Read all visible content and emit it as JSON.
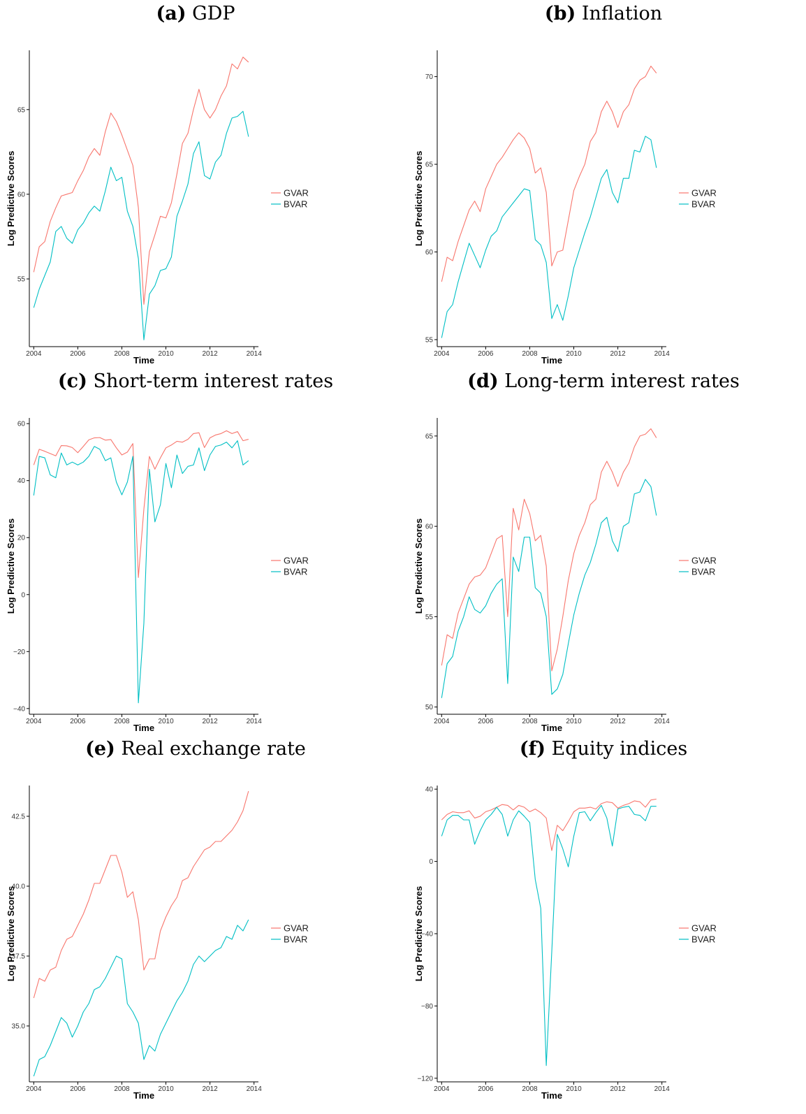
{
  "colors": {
    "gvar": "#F8766D",
    "bvar": "#00BFC4",
    "axis": "#000000"
  },
  "legend": [
    "GVAR",
    "BVAR"
  ],
  "chart_data": [
    {
      "type": "line",
      "label_letter": "(a)",
      "title": "GDP",
      "xlabel": "Time",
      "ylabel": "Log Predictive Scores",
      "xlim": [
        2003.8,
        2014.2
      ],
      "ylim": [
        51,
        68.5
      ],
      "xticks": [
        2004,
        2006,
        2008,
        2010,
        2012,
        2014
      ],
      "yticks": [
        55,
        60,
        65
      ],
      "ytick_labels": [
        "55",
        "60",
        "65"
      ],
      "legend": "right",
      "x": [
        2004.0,
        2004.25,
        2004.5,
        2004.75,
        2005.0,
        2005.25,
        2005.5,
        2005.75,
        2006.0,
        2006.25,
        2006.5,
        2006.75,
        2007.0,
        2007.25,
        2007.5,
        2007.75,
        2008.0,
        2008.25,
        2008.5,
        2008.75,
        2009.0,
        2009.25,
        2009.5,
        2009.75,
        2010.0,
        2010.25,
        2010.5,
        2010.75,
        2011.0,
        2011.25,
        2011.5,
        2011.75,
        2012.0,
        2012.25,
        2012.5,
        2012.75,
        2013.0,
        2013.25,
        2013.5,
        2013.75
      ],
      "series": [
        {
          "name": "GVAR",
          "values": [
            55.4,
            56.9,
            57.2,
            58.4,
            59.2,
            59.9,
            60.0,
            60.1,
            60.8,
            61.4,
            62.2,
            62.7,
            62.3,
            63.7,
            64.8,
            64.3,
            63.5,
            62.6,
            61.7,
            59.2,
            53.5,
            56.6,
            57.6,
            58.7,
            58.6,
            59.5,
            61.2,
            63.0,
            63.6,
            65.0,
            66.2,
            65.0,
            64.5,
            65.0,
            65.8,
            66.4,
            67.7,
            67.4,
            68.1,
            67.8
          ]
        },
        {
          "name": "BVAR",
          "values": [
            53.3,
            54.4,
            55.2,
            56.0,
            57.8,
            58.1,
            57.4,
            57.1,
            57.9,
            58.3,
            58.9,
            59.3,
            59.0,
            60.2,
            61.6,
            60.8,
            61.0,
            59.0,
            58.1,
            56.2,
            51.4,
            54.1,
            54.6,
            55.5,
            55.6,
            56.3,
            58.7,
            59.6,
            60.6,
            62.4,
            63.1,
            61.1,
            60.9,
            61.9,
            62.3,
            63.6,
            64.5,
            64.6,
            64.9,
            63.4
          ]
        }
      ]
    },
    {
      "type": "line",
      "label_letter": "(b)",
      "title": "Inflation",
      "xlabel": "Time",
      "ylabel": "Log Predictive Scores",
      "xlim": [
        2003.8,
        2014.2
      ],
      "ylim": [
        54.6,
        71.5
      ],
      "xticks": [
        2004,
        2006,
        2008,
        2010,
        2012,
        2014
      ],
      "yticks": [
        55,
        60,
        65,
        70
      ],
      "ytick_labels": [
        "55",
        "60",
        "65",
        "70"
      ],
      "legend": "right",
      "x": [
        2004.0,
        2004.25,
        2004.5,
        2004.75,
        2005.0,
        2005.25,
        2005.5,
        2005.75,
        2006.0,
        2006.25,
        2006.5,
        2006.75,
        2007.0,
        2007.25,
        2007.5,
        2007.75,
        2008.0,
        2008.25,
        2008.5,
        2008.75,
        2009.0,
        2009.25,
        2009.5,
        2009.75,
        2010.0,
        2010.25,
        2010.5,
        2010.75,
        2011.0,
        2011.25,
        2011.5,
        2011.75,
        2012.0,
        2012.25,
        2012.5,
        2012.75,
        2013.0,
        2013.25,
        2013.5,
        2013.75
      ],
      "series": [
        {
          "name": "GVAR",
          "values": [
            58.3,
            59.7,
            59.5,
            60.6,
            61.5,
            62.4,
            62.9,
            62.3,
            63.6,
            64.3,
            65.0,
            65.4,
            65.9,
            66.4,
            66.8,
            66.5,
            65.9,
            64.5,
            64.8,
            63.4,
            59.2,
            60.0,
            60.1,
            61.8,
            63.5,
            64.3,
            65.0,
            66.3,
            66.8,
            68.0,
            68.6,
            68.0,
            67.1,
            68.0,
            68.4,
            69.3,
            69.8,
            70.0,
            70.6,
            70.2
          ]
        },
        {
          "name": "BVAR",
          "values": [
            55.1,
            56.6,
            57.0,
            58.3,
            59.4,
            60.5,
            59.8,
            59.1,
            60.1,
            60.9,
            61.2,
            62.0,
            62.4,
            62.8,
            63.2,
            63.6,
            63.5,
            60.7,
            60.4,
            59.4,
            56.2,
            57.0,
            56.1,
            57.5,
            59.1,
            60.1,
            61.1,
            62.0,
            63.1,
            64.2,
            64.7,
            63.4,
            62.8,
            64.2,
            64.2,
            65.8,
            65.7,
            66.6,
            66.4,
            64.8
          ]
        }
      ]
    },
    {
      "type": "line",
      "label_letter": "(c)",
      "title": "Short-term interest rates",
      "xlabel": "Time",
      "ylabel": "Log Predictive Scores",
      "xlim": [
        2003.8,
        2014.2
      ],
      "ylim": [
        -42,
        62
      ],
      "xticks": [
        2004,
        2006,
        2008,
        2010,
        2012,
        2014
      ],
      "yticks": [
        -40,
        -20,
        0,
        20,
        40,
        60
      ],
      "ytick_labels": [
        "−40",
        "−20",
        "0",
        "20",
        "40",
        "60"
      ],
      "legend": "right",
      "x": [
        2004.0,
        2004.25,
        2004.5,
        2004.75,
        2005.0,
        2005.25,
        2005.5,
        2005.75,
        2006.0,
        2006.25,
        2006.5,
        2006.75,
        2007.0,
        2007.25,
        2007.5,
        2007.75,
        2008.0,
        2008.25,
        2008.5,
        2008.75,
        2009.0,
        2009.25,
        2009.5,
        2009.75,
        2010.0,
        2010.25,
        2010.5,
        2010.75,
        2011.0,
        2011.25,
        2011.5,
        2011.75,
        2012.0,
        2012.25,
        2012.5,
        2012.75,
        2013.0,
        2013.25,
        2013.5,
        2013.75
      ],
      "series": [
        {
          "name": "GVAR",
          "values": [
            45.5,
            51.0,
            50.3,
            49.5,
            48.7,
            52.3,
            52.2,
            51.6,
            49.8,
            52.0,
            54.3,
            55.0,
            55.1,
            54.2,
            54.4,
            51.5,
            49.0,
            50.0,
            53.0,
            6.0,
            30.0,
            48.5,
            44.0,
            48.0,
            51.5,
            52.5,
            53.8,
            53.5,
            54.5,
            56.5,
            56.8,
            51.6,
            55.0,
            56.0,
            56.5,
            57.5,
            56.5,
            57.2,
            54.0,
            54.5
          ]
        },
        {
          "name": "BVAR",
          "values": [
            34.8,
            48.5,
            48.0,
            42.0,
            41.0,
            49.7,
            45.5,
            46.5,
            45.5,
            46.5,
            48.5,
            52.0,
            51.0,
            47.0,
            48.0,
            39.5,
            35.0,
            39.5,
            48.5,
            -38.0,
            -10.0,
            44.0,
            25.5,
            31.5,
            46.0,
            37.5,
            49.0,
            42.5,
            45.0,
            45.5,
            51.5,
            43.5,
            49.0,
            52.0,
            52.5,
            53.5,
            51.5,
            54.0,
            45.5,
            47.0
          ]
        }
      ]
    },
    {
      "type": "line",
      "label_letter": "(d)",
      "title": "Long-term interest rates",
      "xlabel": "Time",
      "ylabel": "Log Predictive Scores",
      "xlim": [
        2003.8,
        2014.2
      ],
      "ylim": [
        49.6,
        66.0
      ],
      "xticks": [
        2004,
        2006,
        2008,
        2010,
        2012,
        2014
      ],
      "yticks": [
        50,
        55,
        60,
        65
      ],
      "ytick_labels": [
        "50",
        "55",
        "60",
        "65"
      ],
      "legend": "right",
      "x": [
        2004.0,
        2004.25,
        2004.5,
        2004.75,
        2005.0,
        2005.25,
        2005.5,
        2005.75,
        2006.0,
        2006.25,
        2006.5,
        2006.75,
        2007.0,
        2007.25,
        2007.5,
        2007.75,
        2008.0,
        2008.25,
        2008.5,
        2008.75,
        2009.0,
        2009.25,
        2009.5,
        2009.75,
        2010.0,
        2010.25,
        2010.5,
        2010.75,
        2011.0,
        2011.25,
        2011.5,
        2011.75,
        2012.0,
        2012.25,
        2012.5,
        2012.75,
        2013.0,
        2013.25,
        2013.5,
        2013.75
      ],
      "series": [
        {
          "name": "GVAR",
          "values": [
            52.3,
            54.0,
            53.8,
            55.2,
            56.0,
            56.8,
            57.2,
            57.3,
            57.7,
            58.5,
            59.3,
            59.5,
            55.0,
            61.0,
            59.8,
            61.5,
            60.7,
            59.2,
            59.5,
            57.8,
            52.0,
            53.2,
            55.0,
            57.0,
            58.5,
            59.5,
            60.2,
            61.2,
            61.5,
            63.0,
            63.6,
            63.0,
            62.2,
            63.0,
            63.5,
            64.4,
            65.0,
            65.1,
            65.4,
            64.9
          ]
        },
        {
          "name": "BVAR",
          "values": [
            50.5,
            52.4,
            52.8,
            54.2,
            55.0,
            56.1,
            55.4,
            55.2,
            55.6,
            56.3,
            56.8,
            57.1,
            51.3,
            58.3,
            57.5,
            59.4,
            59.4,
            56.6,
            56.3,
            55.0,
            50.7,
            51.0,
            51.8,
            53.5,
            55.1,
            56.3,
            57.3,
            58.0,
            59.0,
            60.2,
            60.5,
            59.2,
            58.6,
            60.0,
            60.2,
            61.8,
            61.9,
            62.6,
            62.2,
            60.6
          ]
        }
      ]
    },
    {
      "type": "line",
      "label_letter": "(e)",
      "title": "Real exchange rate",
      "xlabel": "Time",
      "ylabel": "Log Predictive Scores",
      "xlim": [
        2003.8,
        2014.2
      ],
      "ylim": [
        33.0,
        43.6
      ],
      "xticks": [
        2004,
        2006,
        2008,
        2010,
        2012,
        2014
      ],
      "yticks": [
        35.0,
        37.5,
        40.0,
        42.5
      ],
      "ytick_labels": [
        "35.0",
        "37.5",
        "40.0",
        "42.5"
      ],
      "legend": "right",
      "x": [
        2004.0,
        2004.25,
        2004.5,
        2004.75,
        2005.0,
        2005.25,
        2005.5,
        2005.75,
        2006.0,
        2006.25,
        2006.5,
        2006.75,
        2007.0,
        2007.25,
        2007.5,
        2007.75,
        2008.0,
        2008.25,
        2008.5,
        2008.75,
        2009.0,
        2009.25,
        2009.5,
        2009.75,
        2010.0,
        2010.25,
        2010.5,
        2010.75,
        2011.0,
        2011.25,
        2011.5,
        2011.75,
        2012.0,
        2012.25,
        2012.5,
        2012.75,
        2013.0,
        2013.25,
        2013.5,
        2013.75
      ],
      "series": [
        {
          "name": "GVAR",
          "values": [
            36.0,
            36.7,
            36.6,
            37.0,
            37.1,
            37.7,
            38.1,
            38.2,
            38.6,
            39.0,
            39.5,
            40.1,
            40.1,
            40.6,
            41.1,
            41.1,
            40.5,
            39.6,
            39.8,
            38.8,
            37.0,
            37.4,
            37.4,
            38.4,
            38.9,
            39.3,
            39.6,
            40.2,
            40.3,
            40.7,
            41.0,
            41.3,
            41.4,
            41.6,
            41.6,
            41.8,
            42.0,
            42.3,
            42.7,
            43.4
          ]
        },
        {
          "name": "BVAR",
          "values": [
            33.2,
            33.8,
            33.9,
            34.3,
            34.8,
            35.3,
            35.1,
            34.6,
            35.0,
            35.5,
            35.8,
            36.3,
            36.4,
            36.7,
            37.1,
            37.5,
            37.4,
            35.8,
            35.5,
            35.1,
            33.8,
            34.3,
            34.1,
            34.7,
            35.1,
            35.5,
            35.9,
            36.2,
            36.6,
            37.2,
            37.5,
            37.3,
            37.5,
            37.7,
            37.8,
            38.2,
            38.1,
            38.6,
            38.4,
            38.8
          ]
        }
      ]
    },
    {
      "type": "line",
      "label_letter": "(f)",
      "title": "Equity indices",
      "xlabel": "Time",
      "ylabel": "Log Predictive Scores",
      "xlim": [
        2003.8,
        2014.2
      ],
      "ylim": [
        -122,
        42
      ],
      "xticks": [
        2004,
        2006,
        2008,
        2010,
        2012,
        2014
      ],
      "yticks": [
        -120,
        -80,
        -40,
        0,
        40
      ],
      "ytick_labels": [
        "−120",
        "−80",
        "−40",
        "0",
        "40"
      ],
      "legend": "right",
      "x": [
        2004.0,
        2004.25,
        2004.5,
        2004.75,
        2005.0,
        2005.25,
        2005.5,
        2005.75,
        2006.0,
        2006.25,
        2006.5,
        2006.75,
        2007.0,
        2007.25,
        2007.5,
        2007.75,
        2008.0,
        2008.25,
        2008.5,
        2008.75,
        2009.0,
        2009.25,
        2009.5,
        2009.75,
        2010.0,
        2010.25,
        2010.5,
        2010.75,
        2011.0,
        2011.25,
        2011.5,
        2011.75,
        2012.0,
        2012.25,
        2012.5,
        2012.75,
        2013.0,
        2013.25,
        2013.5,
        2013.75
      ],
      "series": [
        {
          "name": "GVAR",
          "values": [
            23.0,
            26.0,
            27.5,
            27.0,
            27.0,
            28.0,
            24.0,
            25.0,
            27.5,
            28.5,
            30.0,
            31.5,
            31.0,
            28.5,
            31.0,
            30.0,
            27.5,
            29.0,
            27.0,
            24.0,
            6.0,
            20.0,
            17.0,
            22.0,
            27.5,
            29.5,
            29.5,
            30.0,
            29.0,
            32.0,
            33.0,
            32.5,
            29.5,
            31.0,
            32.0,
            33.5,
            33.0,
            30.0,
            34.0,
            34.5
          ]
        },
        {
          "name": "BVAR",
          "values": [
            14.0,
            23.0,
            25.5,
            25.5,
            23.0,
            23.0,
            9.5,
            17.0,
            23.0,
            26.0,
            30.0,
            26.0,
            14.0,
            23.0,
            28.0,
            25.0,
            21.5,
            -10.0,
            -26.0,
            -113.0,
            -50.0,
            15.0,
            7.0,
            -3.0,
            14.0,
            27.0,
            27.5,
            22.5,
            27.0,
            31.0,
            24.0,
            8.5,
            29.0,
            30.0,
            30.5,
            26.0,
            25.5,
            22.5,
            30.5,
            30.5
          ]
        }
      ]
    }
  ]
}
